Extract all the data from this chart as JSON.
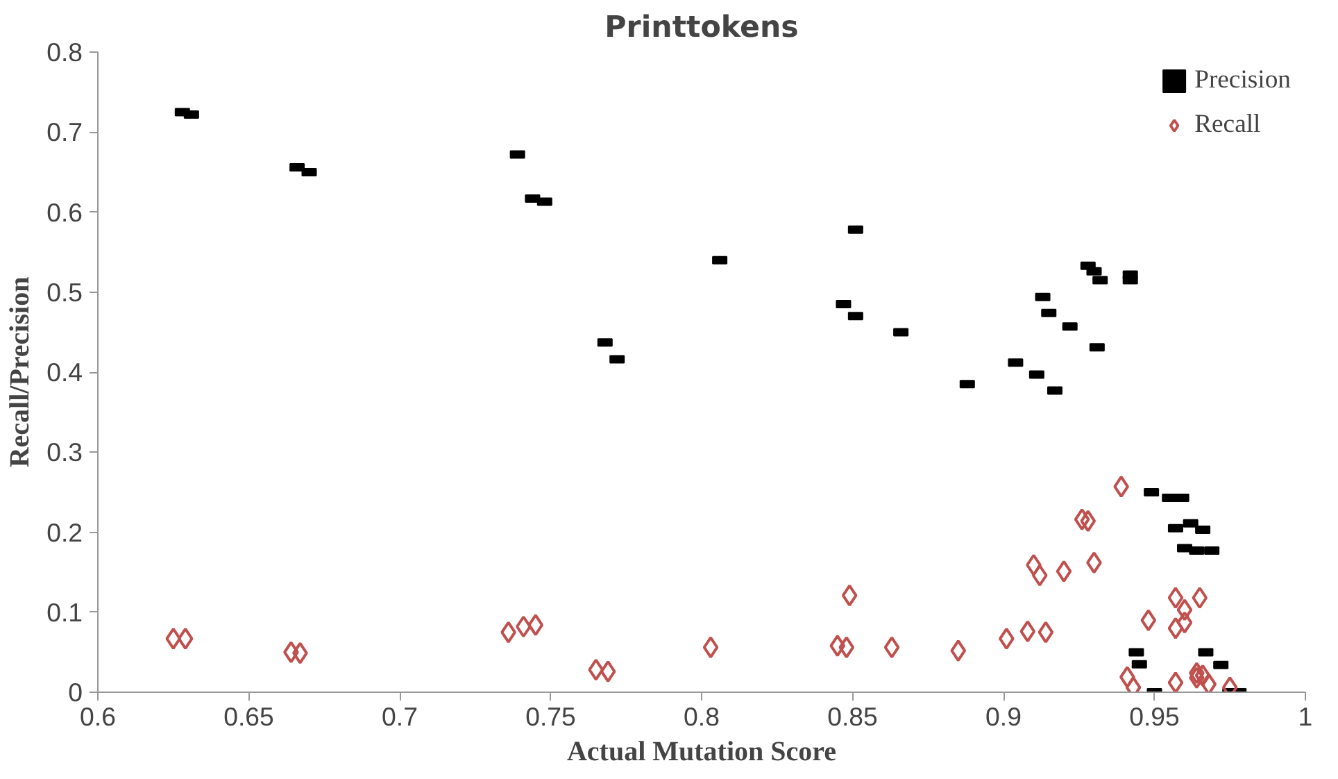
{
  "chart_data": {
    "type": "scatter",
    "title": "Printtokens",
    "xlabel": "Actual Mutation Score",
    "ylabel": "Recall/Precision",
    "xlim": [
      0.6,
      1
    ],
    "xticks": [
      0.6,
      0.65,
      0.7,
      0.75,
      0.8,
      0.85,
      0.9,
      0.95,
      1
    ],
    "ylim": [
      0,
      0.8
    ],
    "yticks": [
      0,
      0.1,
      0.2,
      0.3,
      0.4,
      0.5,
      0.6,
      0.7,
      0.8
    ],
    "grid": false,
    "legend": "top right",
    "series": [
      {
        "name": "Precision",
        "color": "#000000",
        "x": [
          0.628,
          0.631,
          0.666,
          0.67,
          0.739,
          0.744,
          0.748,
          0.768,
          0.772,
          0.806,
          0.851,
          0.847,
          0.851,
          0.866,
          0.888,
          0.904,
          0.911,
          0.917,
          0.913,
          0.915,
          0.922,
          0.931,
          0.928,
          0.93,
          0.932,
          0.942,
          0.942,
          0.949,
          0.955,
          0.959,
          0.962,
          0.957,
          0.966,
          0.96,
          0.964,
          0.969,
          0.944,
          0.945,
          0.967,
          0.972,
          0.95,
          0.975,
          0.978
        ],
        "values": [
          0.725,
          0.722,
          0.656,
          0.65,
          0.672,
          0.617,
          0.613,
          0.437,
          0.416,
          0.54,
          0.578,
          0.485,
          0.47,
          0.45,
          0.385,
          0.412,
          0.397,
          0.377,
          0.494,
          0.474,
          0.457,
          0.431,
          0.533,
          0.526,
          0.515,
          0.522,
          0.515,
          0.25,
          0.243,
          0.243,
          0.211,
          0.205,
          0.203,
          0.18,
          0.177,
          0.177,
          0.05,
          0.035,
          0.05,
          0.034,
          0.0,
          0.0,
          0.0
        ]
      },
      {
        "name": "Recall",
        "color": "#c0504d",
        "marker": "diamond",
        "x": [
          0.625,
          0.629,
          0.664,
          0.667,
          0.736,
          0.741,
          0.745,
          0.765,
          0.769,
          0.803,
          0.849,
          0.845,
          0.848,
          0.863,
          0.885,
          0.901,
          0.908,
          0.914,
          0.91,
          0.912,
          0.92,
          0.93,
          0.926,
          0.928,
          0.939,
          0.948,
          0.957,
          0.96,
          0.965,
          0.96,
          0.957,
          0.941,
          0.943,
          0.957,
          0.964,
          0.966,
          0.968,
          0.975,
          0.964
        ],
        "values": [
          0.067,
          0.067,
          0.05,
          0.049,
          0.075,
          0.082,
          0.084,
          0.028,
          0.026,
          0.056,
          0.121,
          0.058,
          0.056,
          0.056,
          0.052,
          0.067,
          0.076,
          0.075,
          0.159,
          0.146,
          0.151,
          0.162,
          0.216,
          0.214,
          0.257,
          0.09,
          0.118,
          0.103,
          0.118,
          0.087,
          0.08,
          0.019,
          0.006,
          0.012,
          0.018,
          0.021,
          0.01,
          0.006,
          0.024
        ]
      }
    ]
  }
}
